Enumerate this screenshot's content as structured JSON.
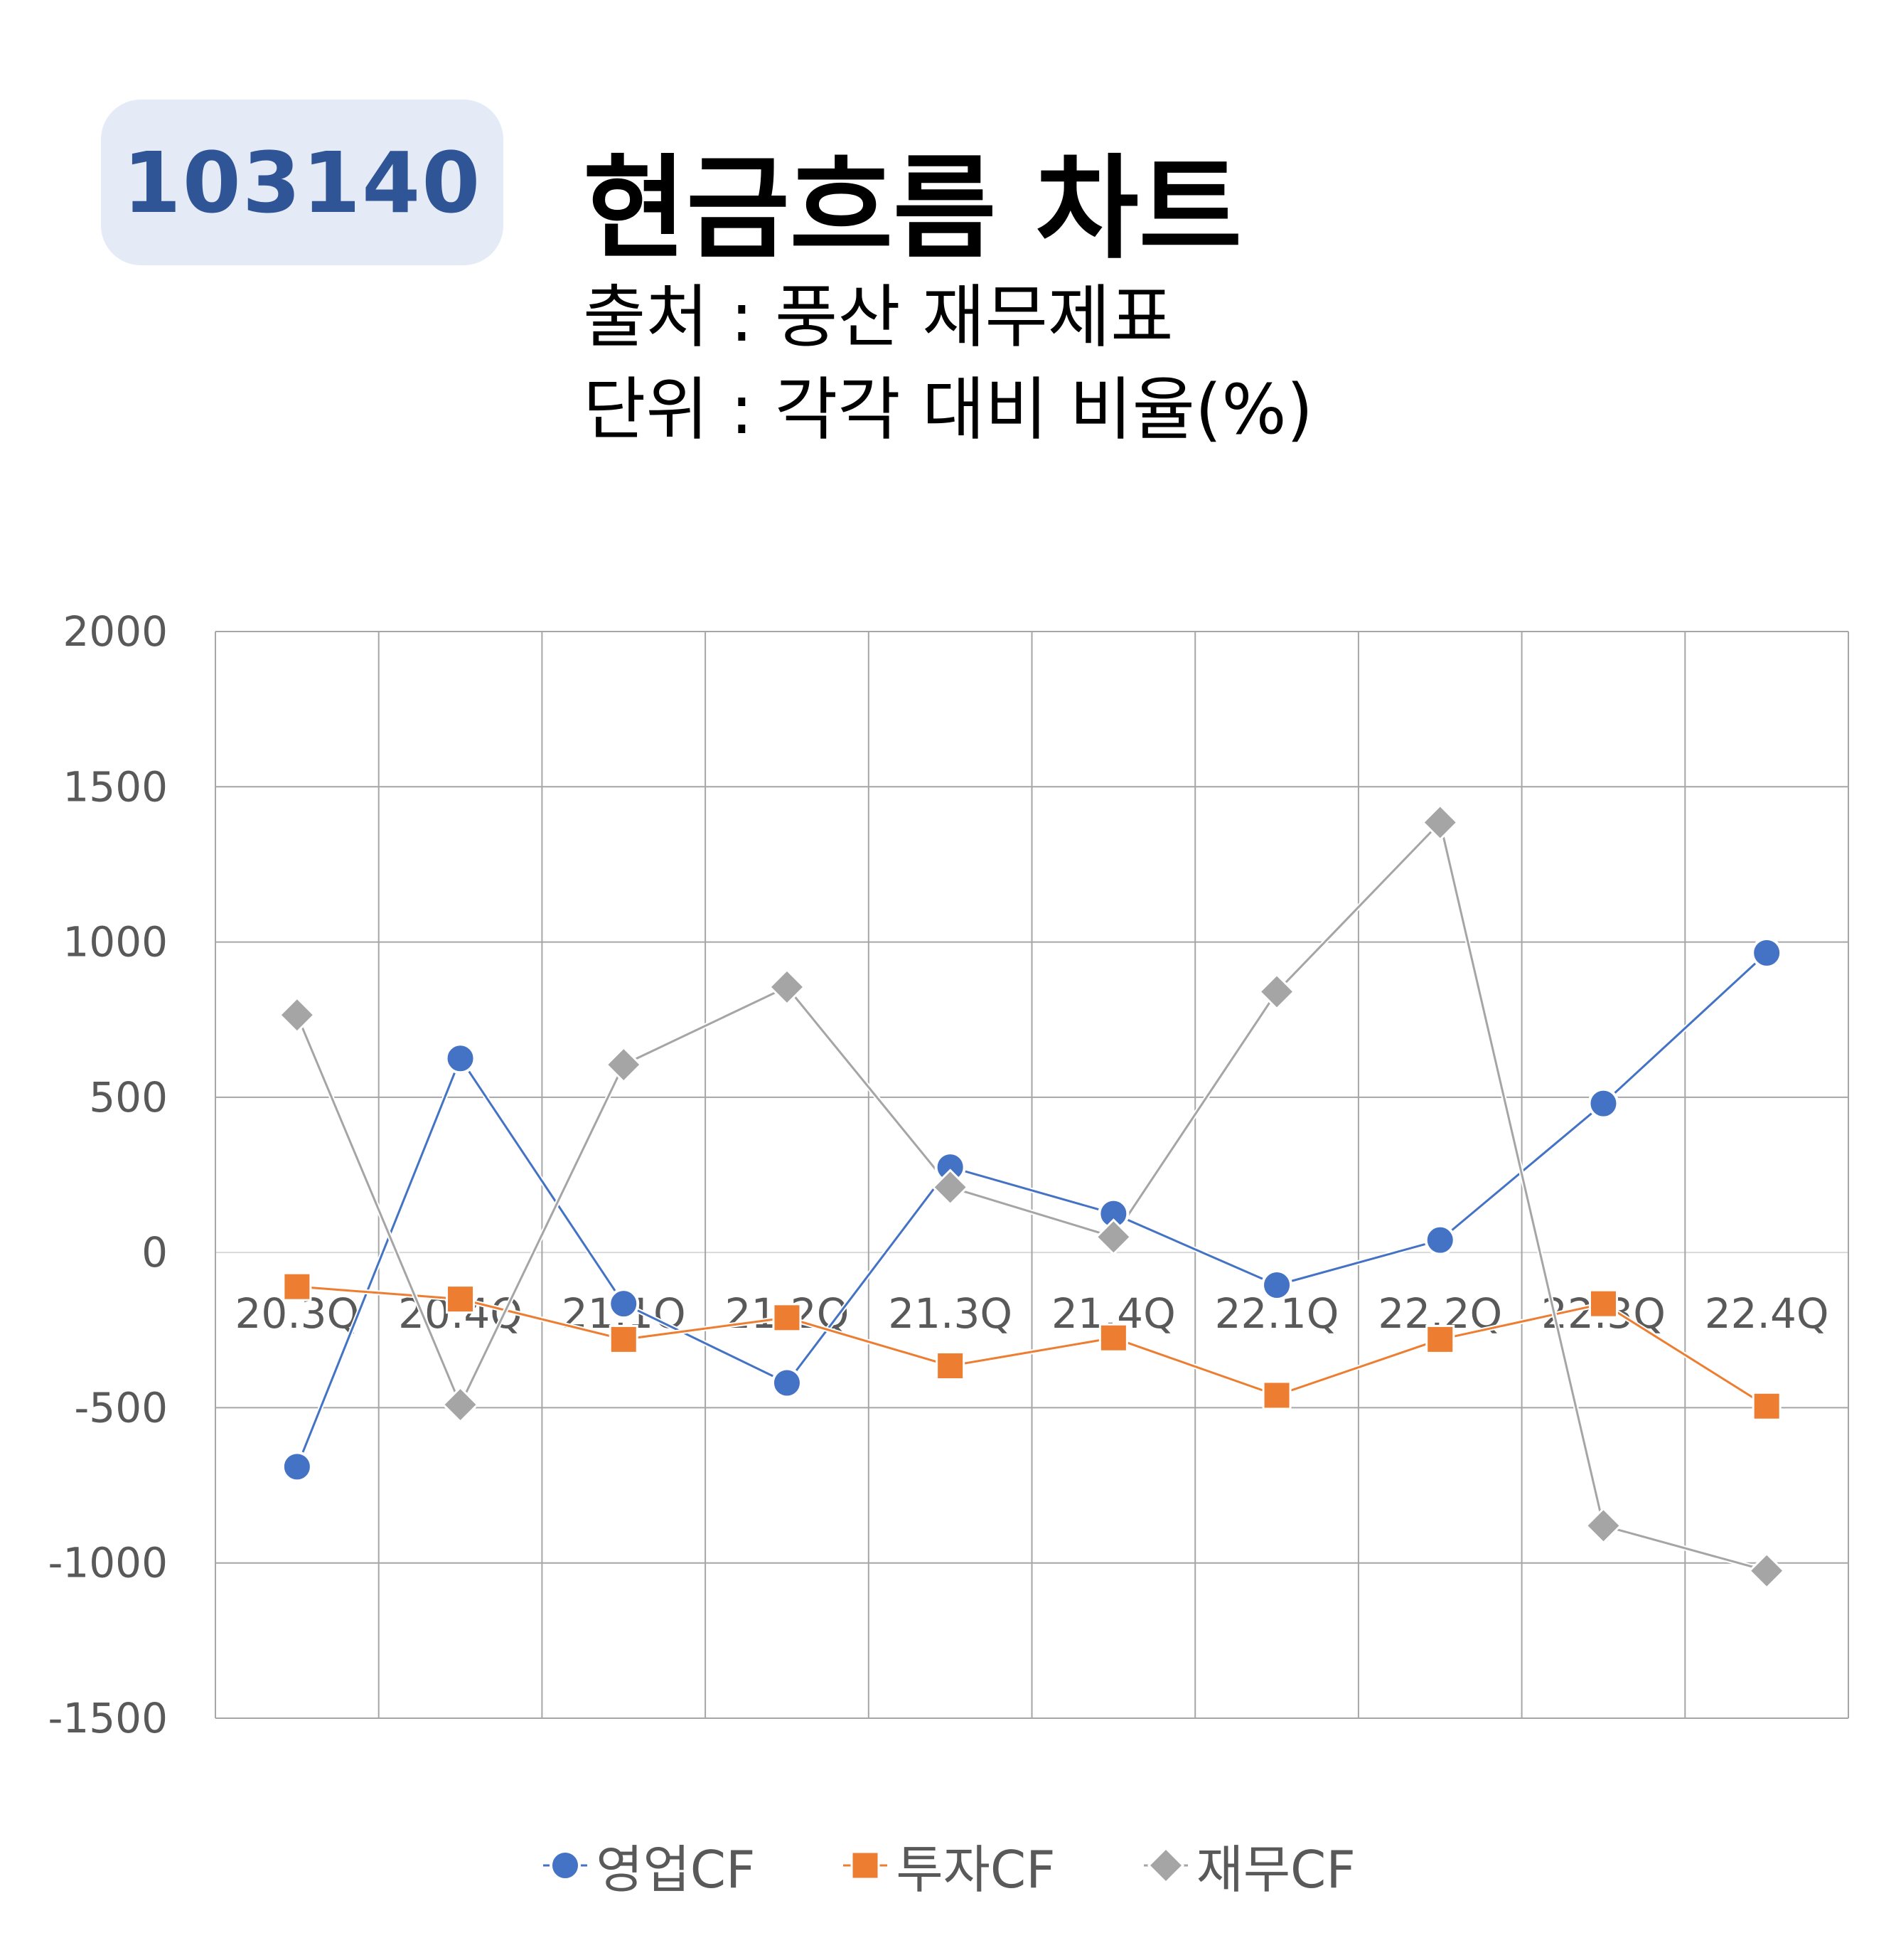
{
  "header": {
    "code": "103140",
    "title": "현금흐름 차트",
    "source": "출처 : 풍산 재무제표",
    "unit": "단위 : 각각 대비 비율(%)"
  },
  "colors": {
    "badge_bg": "#e4eaf6",
    "badge_text": "#2f5597",
    "grid": "#a6a6a6"
  },
  "chart_data": {
    "type": "line",
    "categories": [
      "20.3Q",
      "20.4Q",
      "21.1Q",
      "21.2Q",
      "21.3Q",
      "21.4Q",
      "22.1Q",
      "22.2Q",
      "22.3Q",
      "22.4Q"
    ],
    "ylim": [
      -1500,
      2000
    ],
    "yticks": [
      2000,
      1500,
      1000,
      500,
      0,
      -500,
      -1000,
      -1500
    ],
    "grid": true,
    "legend_position": "bottom",
    "series": [
      {
        "name": "영업CF",
        "color": "#4472c4",
        "marker": "circle",
        "values": [
          -690,
          625,
          -165,
          -420,
          275,
          125,
          -105,
          40,
          480,
          965
        ]
      },
      {
        "name": "투자CF",
        "color": "#ed7d31",
        "marker": "square",
        "values": [
          -110,
          -150,
          -280,
          -210,
          -365,
          -275,
          -460,
          -280,
          -165,
          -495
        ]
      },
      {
        "name": "재무CF",
        "color": "#a5a5a5",
        "marker": "diamond",
        "values": [
          765,
          -490,
          605,
          855,
          210,
          50,
          840,
          1385,
          -880,
          -1025
        ]
      }
    ]
  }
}
